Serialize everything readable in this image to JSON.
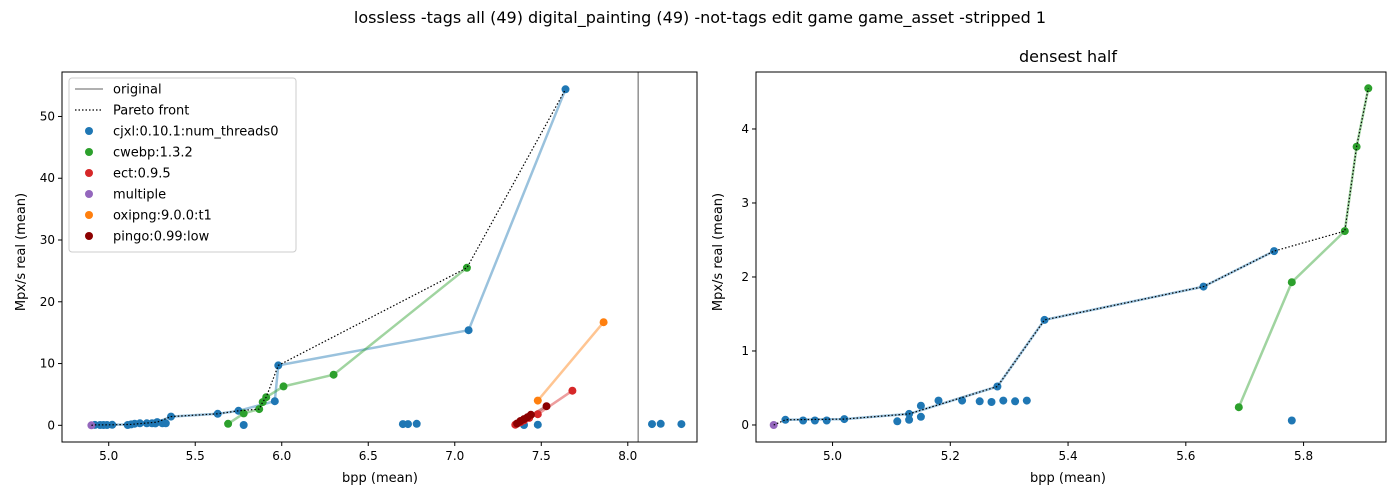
{
  "figure": {
    "suptitle": "lossless -tags all (49) digital_painting (49) -not-tags edit game game_asset -stripped 1"
  },
  "colors": {
    "cjxl": "#1f77b4",
    "cwebp": "#2ca02c",
    "ect": "#d62728",
    "multiple": "#9467bd",
    "oxipng": "#ff7f0e",
    "pingo": "#8c0000",
    "original": "#808080",
    "pareto": "#000000"
  },
  "chart_data": [
    {
      "type": "scatter",
      "title": "",
      "xlabel": "bpp (mean)",
      "ylabel": "Mpx/s real (mean)",
      "xlim": [
        4.73,
        8.4
      ],
      "ylim": [
        -2.7,
        57.2
      ],
      "xticks": [
        "5.0",
        "5.5",
        "6.0",
        "6.5",
        "7.0",
        "7.5",
        "8.0"
      ],
      "xtick_values": [
        5.0,
        5.5,
        6.0,
        6.5,
        7.0,
        7.5,
        8.0
      ],
      "yticks": [
        "0",
        "10",
        "20",
        "30",
        "40",
        "50"
      ],
      "ytick_values": [
        0,
        10,
        20,
        30,
        40,
        50
      ],
      "grid": false,
      "legend_position": "top-left",
      "legend": [
        {
          "label": "original",
          "kind": "solid-line",
          "color_key": "original"
        },
        {
          "label": "Pareto front",
          "kind": "dotted-line",
          "color_key": "pareto"
        },
        {
          "label": "cjxl:0.10.1:num_threads0",
          "kind": "marker",
          "color_key": "cjxl"
        },
        {
          "label": "cwebp:1.3.2",
          "kind": "marker",
          "color_key": "cwebp"
        },
        {
          "label": "ect:0.9.5",
          "kind": "marker",
          "color_key": "ect"
        },
        {
          "label": "multiple",
          "kind": "marker",
          "color_key": "multiple"
        },
        {
          "label": "oxipng:9.0.0:t1",
          "kind": "marker",
          "color_key": "oxipng"
        },
        {
          "label": "pingo:0.99:low",
          "kind": "marker",
          "color_key": "pingo"
        }
      ],
      "original_vline_x": 8.06,
      "pareto_front": [
        [
          4.9,
          0.0
        ],
        [
          4.92,
          0.07
        ],
        [
          5.02,
          0.08
        ],
        [
          5.13,
          0.15
        ],
        [
          5.28,
          0.52
        ],
        [
          5.36,
          1.42
        ],
        [
          5.63,
          1.87
        ],
        [
          5.75,
          2.35
        ],
        [
          5.87,
          2.62
        ],
        [
          5.89,
          3.76
        ],
        [
          5.91,
          4.55
        ],
        [
          5.98,
          9.7
        ],
        [
          7.07,
          25.5
        ],
        [
          7.64,
          54.4
        ]
      ],
      "series": [
        {
          "name": "cjxl:0.10.1:num_threads0",
          "color_key": "cjxl",
          "line": [
            [
              4.92,
              0.07
            ],
            [
              5.13,
              0.15
            ],
            [
              5.28,
              0.52
            ],
            [
              5.36,
              1.42
            ],
            [
              5.63,
              1.87
            ],
            [
              5.75,
              2.35
            ],
            [
              5.96,
              3.9
            ],
            [
              5.98,
              9.7
            ],
            [
              7.08,
              15.4
            ],
            [
              7.64,
              54.4
            ]
          ],
          "points": [
            [
              4.92,
              0.07
            ],
            [
              4.95,
              0.06
            ],
            [
              4.97,
              0.06
            ],
            [
              4.99,
              0.06
            ],
            [
              5.02,
              0.08
            ],
            [
              5.11,
              0.05
            ],
            [
              5.13,
              0.15
            ],
            [
              5.15,
              0.26
            ],
            [
              5.18,
              0.33
            ],
            [
              5.22,
              0.33
            ],
            [
              5.25,
              0.32
            ],
            [
              5.27,
              0.31
            ],
            [
              5.28,
              0.52
            ],
            [
              5.31,
              0.33
            ],
            [
              5.33,
              0.33
            ],
            [
              5.36,
              1.42
            ],
            [
              5.63,
              1.87
            ],
            [
              5.75,
              2.35
            ],
            [
              5.78,
              0.06
            ],
            [
              5.96,
              3.9
            ],
            [
              5.98,
              9.7
            ],
            [
              6.7,
              0.2
            ],
            [
              6.73,
              0.2
            ],
            [
              6.78,
              0.25
            ],
            [
              7.08,
              15.4
            ],
            [
              7.4,
              0.05
            ],
            [
              7.48,
              0.1
            ],
            [
              7.64,
              54.4
            ],
            [
              8.14,
              0.2
            ],
            [
              8.19,
              0.25
            ],
            [
              8.31,
              0.2
            ]
          ]
        },
        {
          "name": "cwebp:1.3.2",
          "color_key": "cwebp",
          "line": [
            [
              5.69,
              0.24
            ],
            [
              5.78,
              1.93
            ],
            [
              5.87,
              2.62
            ],
            [
              5.89,
              3.76
            ],
            [
              5.91,
              4.55
            ],
            [
              6.01,
              6.3
            ],
            [
              6.3,
              8.2
            ],
            [
              7.07,
              25.5
            ]
          ],
          "points": [
            [
              5.69,
              0.24
            ],
            [
              5.78,
              1.93
            ],
            [
              5.87,
              2.62
            ],
            [
              5.89,
              3.76
            ],
            [
              5.91,
              4.55
            ],
            [
              6.01,
              6.3
            ],
            [
              6.3,
              8.2
            ],
            [
              7.07,
              25.5
            ]
          ]
        },
        {
          "name": "ect:0.9.5",
          "color_key": "ect",
          "line": [
            [
              7.35,
              0.1
            ],
            [
              7.4,
              0.8
            ],
            [
              7.48,
              1.8
            ],
            [
              7.68,
              5.6
            ]
          ],
          "points": [
            [
              7.35,
              0.1
            ],
            [
              7.38,
              0.5
            ],
            [
              7.4,
              0.8
            ],
            [
              7.43,
              1.2
            ],
            [
              7.48,
              1.8
            ],
            [
              7.68,
              5.6
            ]
          ]
        },
        {
          "name": "multiple",
          "color_key": "multiple",
          "line": [],
          "points": [
            [
              4.9,
              0.0
            ]
          ]
        },
        {
          "name": "oxipng:9.0.0:t1",
          "color_key": "oxipng",
          "line": [
            [
              7.48,
              4.0
            ],
            [
              7.86,
              16.7
            ]
          ],
          "points": [
            [
              7.48,
              4.0
            ],
            [
              7.86,
              16.7
            ]
          ]
        },
        {
          "name": "pingo:0.99:low",
          "color_key": "pingo",
          "line": [
            [
              7.36,
              0.3
            ],
            [
              7.42,
              1.3
            ],
            [
              7.53,
              3.1
            ]
          ],
          "points": [
            [
              7.36,
              0.3
            ],
            [
              7.38,
              0.7
            ],
            [
              7.4,
              1.0
            ],
            [
              7.42,
              1.3
            ],
            [
              7.44,
              1.7
            ],
            [
              7.53,
              3.1
            ]
          ]
        }
      ]
    },
    {
      "type": "scatter",
      "title": "densest half",
      "xlabel": "bpp (mean)",
      "ylabel": "Mpx/s real (mean)",
      "xlim": [
        4.87,
        5.94
      ],
      "ylim": [
        -0.23,
        4.77
      ],
      "xticks": [
        "5.0",
        "5.2",
        "5.4",
        "5.6",
        "5.8"
      ],
      "xtick_values": [
        5.0,
        5.2,
        5.4,
        5.6,
        5.8
      ],
      "yticks": [
        "0",
        "1",
        "2",
        "3",
        "4"
      ],
      "ytick_values": [
        0,
        1,
        2,
        3,
        4
      ],
      "grid": false,
      "pareto_front": [
        [
          4.9,
          0.0
        ],
        [
          4.92,
          0.07
        ],
        [
          5.02,
          0.08
        ],
        [
          5.13,
          0.15
        ],
        [
          5.28,
          0.52
        ],
        [
          5.36,
          1.42
        ],
        [
          5.63,
          1.87
        ],
        [
          5.75,
          2.35
        ],
        [
          5.87,
          2.62
        ],
        [
          5.89,
          3.76
        ],
        [
          5.91,
          4.55
        ]
      ],
      "series": [
        {
          "name": "cjxl:0.10.1:num_threads0",
          "color_key": "cjxl",
          "line": [
            [
              4.92,
              0.07
            ],
            [
              5.02,
              0.08
            ],
            [
              5.13,
              0.15
            ],
            [
              5.28,
              0.52
            ],
            [
              5.36,
              1.42
            ],
            [
              5.63,
              1.87
            ],
            [
              5.75,
              2.35
            ]
          ],
          "points": [
            [
              4.92,
              0.07
            ],
            [
              4.95,
              0.06
            ],
            [
              4.97,
              0.06
            ],
            [
              4.99,
              0.06
            ],
            [
              5.02,
              0.08
            ],
            [
              5.11,
              0.05
            ],
            [
              5.13,
              0.07
            ],
            [
              5.13,
              0.15
            ],
            [
              5.15,
              0.26
            ],
            [
              5.15,
              0.11
            ],
            [
              5.18,
              0.33
            ],
            [
              5.22,
              0.33
            ],
            [
              5.25,
              0.32
            ],
            [
              5.27,
              0.31
            ],
            [
              5.28,
              0.52
            ],
            [
              5.29,
              0.33
            ],
            [
              5.31,
              0.32
            ],
            [
              5.33,
              0.33
            ],
            [
              5.36,
              1.42
            ],
            [
              5.63,
              1.87
            ],
            [
              5.75,
              2.35
            ],
            [
              5.78,
              0.06
            ]
          ]
        },
        {
          "name": "cwebp:1.3.2",
          "color_key": "cwebp",
          "line": [
            [
              5.69,
              0.24
            ],
            [
              5.78,
              1.93
            ],
            [
              5.87,
              2.62
            ],
            [
              5.89,
              3.76
            ],
            [
              5.91,
              4.55
            ]
          ],
          "points": [
            [
              5.69,
              0.24
            ],
            [
              5.78,
              1.93
            ],
            [
              5.87,
              2.62
            ],
            [
              5.89,
              3.76
            ],
            [
              5.91,
              4.55
            ]
          ]
        },
        {
          "name": "multiple",
          "color_key": "multiple",
          "line": [],
          "points": [
            [
              4.9,
              0.0
            ]
          ]
        }
      ]
    }
  ]
}
